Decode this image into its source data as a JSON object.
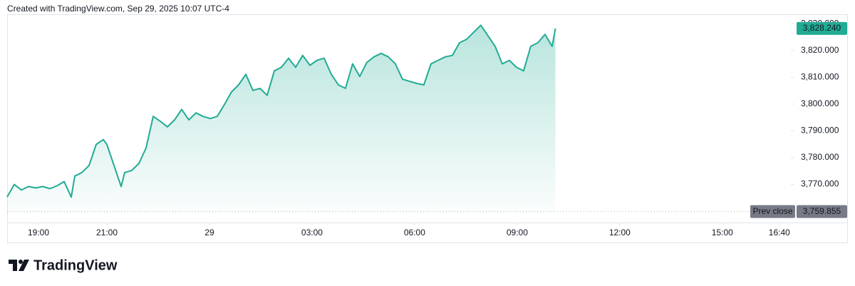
{
  "chart_data": {
    "type": "area",
    "title": "Created with TradingView.com, Sep 29, 2025 10:07 UTC-4",
    "logo_text": "TradingView",
    "color": "#22ab94",
    "x": [
      18.083,
      18.292,
      18.5,
      18.708,
      18.917,
      19.125,
      19.333,
      19.542,
      19.75,
      19.958,
      20.063,
      20.271,
      20.479,
      20.688,
      20.896,
      21.0,
      21.208,
      21.417,
      21.521,
      21.729,
      21.938,
      22.146,
      22.354,
      22.563,
      22.771,
      22.979,
      23.188,
      23.396,
      23.604,
      23.813,
      24.021,
      24.229,
      24.438,
      24.646,
      24.854,
      25.063,
      25.271,
      25.479,
      25.688,
      25.896,
      26.104,
      26.313,
      26.521,
      26.729,
      26.938,
      27.146,
      27.354,
      27.563,
      27.771,
      27.979,
      28.188,
      28.396,
      28.604,
      28.813,
      29.021,
      29.229,
      29.438,
      29.646,
      29.854,
      30.063,
      30.271,
      30.479,
      30.688,
      30.896,
      31.104,
      31.313,
      31.521,
      31.729,
      31.938,
      32.146,
      32.354,
      32.563,
      32.771,
      32.979,
      33.188,
      33.396,
      33.604,
      33.813,
      34.021,
      34.117
    ],
    "values": [
      3765.29,
      3770.0,
      3767.91,
      3769.21,
      3768.69,
      3769.21,
      3768.43,
      3769.48,
      3771.05,
      3765.29,
      3773.14,
      3774.45,
      3777.07,
      3784.92,
      3786.75,
      3784.92,
      3777.07,
      3769.21,
      3774.45,
      3775.24,
      3777.85,
      3783.61,
      3795.39,
      3793.56,
      3791.47,
      3794.08,
      3798.01,
      3794.08,
      3796.7,
      3795.39,
      3794.61,
      3795.39,
      3799.84,
      3804.55,
      3807.17,
      3811.1,
      3805.08,
      3805.86,
      3803.25,
      3812.41,
      3813.72,
      3817.12,
      3813.72,
      3818.17,
      3814.5,
      3816.34,
      3817.12,
      3811.1,
      3807.17,
      3805.86,
      3815.03,
      3810.31,
      3815.55,
      3817.64,
      3818.95,
      3817.64,
      3815.03,
      3809.27,
      3808.48,
      3807.7,
      3807.17,
      3815.03,
      3816.34,
      3817.64,
      3818.17,
      3822.88,
      3824.19,
      3826.81,
      3829.42,
      3825.5,
      3821.57,
      3815.03,
      3816.34,
      3813.72,
      3812.41,
      3821.57,
      3822.88,
      3826.02,
      3821.57,
      3828.24
    ],
    "xlim": [
      18.083,
      40.9
    ],
    "xticks": [
      {
        "value": 19,
        "label": "19:00"
      },
      {
        "value": 21,
        "label": "21:00"
      },
      {
        "value": 24,
        "label": "29"
      },
      {
        "value": 27,
        "label": "03:00"
      },
      {
        "value": 30,
        "label": "06:00"
      },
      {
        "value": 33,
        "label": "09:00"
      },
      {
        "value": 36,
        "label": "12:00"
      },
      {
        "value": 39,
        "label": "15:00"
      },
      {
        "value": 40.667,
        "label": "16:40"
      }
    ],
    "ylim": [
      3759.5,
      3833
    ],
    "yticks": [
      {
        "value": 3770,
        "label": "3,770.000"
      },
      {
        "value": 3780,
        "label": "3,780.000"
      },
      {
        "value": 3790,
        "label": "3,790.000"
      },
      {
        "value": 3800,
        "label": "3,800.000"
      },
      {
        "value": 3810,
        "label": "3,810.000"
      },
      {
        "value": 3820,
        "label": "3,820.000"
      },
      {
        "value": 3830,
        "label": "3,830.000"
      }
    ],
    "last_price": {
      "value": 3828.24,
      "label": "3,828.240"
    },
    "prev_close": {
      "name": "Prev close",
      "value": 3759.855,
      "label": "3,759.855"
    }
  }
}
